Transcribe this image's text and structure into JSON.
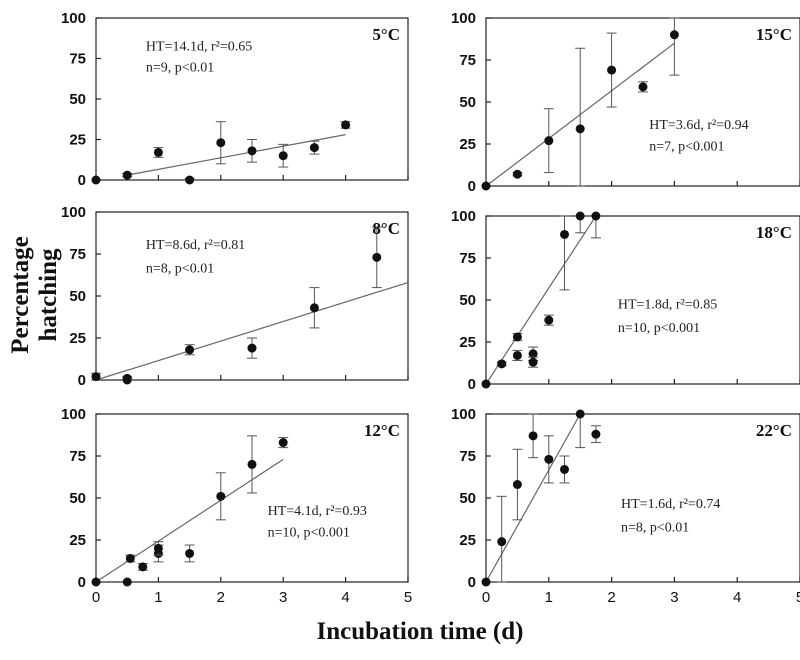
{
  "figure": {
    "y_label": "Percentage hatching",
    "x_label": "Incubation time (d)"
  },
  "chart_data": [
    {
      "type": "scatter",
      "temperature": "5°C",
      "annotation_line1": "HT=14.1d, r²=0.65",
      "annotation_line2": "n=9, p<0.01",
      "xlim": [
        0,
        5
      ],
      "ylim": [
        0,
        100
      ],
      "x_ticks": [
        "0",
        "1",
        "2",
        "3",
        "4",
        "5"
      ],
      "y_ticks": [
        "0",
        "25",
        "50",
        "75",
        "100"
      ],
      "points": [
        [
          0,
          0
        ],
        [
          0.5,
          3
        ],
        [
          1,
          17
        ],
        [
          1.5,
          0
        ],
        [
          2,
          23
        ],
        [
          2.5,
          18
        ],
        [
          3,
          15
        ],
        [
          3.5,
          20
        ],
        [
          4,
          34
        ]
      ],
      "err": [
        0,
        1,
        3,
        1,
        13,
        7,
        7,
        4,
        2
      ],
      "fit": [
        [
          0.5,
          3
        ],
        [
          4,
          28
        ]
      ]
    },
    {
      "type": "scatter",
      "temperature": "15°C",
      "annotation_line1": "HT=3.6d, r²=0.94",
      "annotation_line2": "n=7, p<0.001",
      "xlim": [
        0,
        5
      ],
      "ylim": [
        0,
        100
      ],
      "x_ticks": [
        "0",
        "1",
        "2",
        "3",
        "4",
        "5"
      ],
      "y_ticks": [
        "0",
        "25",
        "50",
        "75",
        "100"
      ],
      "points": [
        [
          0,
          0
        ],
        [
          0.5,
          7
        ],
        [
          1,
          27
        ],
        [
          1.5,
          34
        ],
        [
          2,
          69
        ],
        [
          2.5,
          59
        ],
        [
          3,
          90
        ]
      ],
      "err": [
        0,
        1,
        19,
        48,
        22,
        3,
        24
      ],
      "fit": [
        [
          0,
          0
        ],
        [
          3,
          85
        ]
      ]
    },
    {
      "type": "scatter",
      "temperature": "8°C",
      "annotation_line1": "HT=8.6d, r²=0.81",
      "annotation_line2": "n=8, p<0.01",
      "xlim": [
        0,
        5
      ],
      "ylim": [
        0,
        100
      ],
      "x_ticks": [
        "0",
        "1",
        "2",
        "3",
        "4",
        "5"
      ],
      "y_ticks": [
        "0",
        "25",
        "50",
        "75",
        "100"
      ],
      "points": [
        [
          0,
          2
        ],
        [
          0.5,
          1
        ],
        [
          0.5,
          0
        ],
        [
          1.5,
          18
        ],
        [
          2.5,
          19
        ],
        [
          3.5,
          43
        ],
        [
          4.5,
          73
        ]
      ],
      "err": [
        2,
        1,
        1,
        3,
        6,
        12,
        18
      ],
      "fit": [
        [
          0,
          0
        ],
        [
          5,
          58
        ]
      ]
    },
    {
      "type": "scatter",
      "temperature": "18°C",
      "annotation_line1": "HT=1.8d, r²=0.85",
      "annotation_line2": "n=10, p<0.001",
      "xlim": [
        0,
        5
      ],
      "ylim": [
        0,
        100
      ],
      "x_ticks": [
        "0",
        "1",
        "2",
        "3",
        "4",
        "5"
      ],
      "y_ticks": [
        "0",
        "25",
        "50",
        "75",
        "100"
      ],
      "points": [
        [
          0,
          0
        ],
        [
          0.25,
          12
        ],
        [
          0.5,
          28
        ],
        [
          0.5,
          17
        ],
        [
          0.75,
          18
        ],
        [
          0.75,
          13
        ],
        [
          1,
          38
        ],
        [
          1.25,
          89
        ],
        [
          1.5,
          100
        ],
        [
          1.75,
          100
        ]
      ],
      "err": [
        0,
        1,
        2,
        3,
        4,
        3,
        3,
        33,
        10,
        13
      ],
      "fit": [
        [
          0,
          0
        ],
        [
          1.75,
          100
        ]
      ]
    },
    {
      "type": "scatter",
      "temperature": "12°C",
      "annotation_line1": "HT=4.1d, r²=0.93",
      "annotation_line2": "n=10, p<0.001",
      "xlim": [
        0,
        5
      ],
      "ylim": [
        0,
        100
      ],
      "x_ticks": [
        "0",
        "1",
        "2",
        "3",
        "4",
        "5"
      ],
      "y_ticks": [
        "0",
        "25",
        "50",
        "75",
        "100"
      ],
      "points": [
        [
          0,
          0
        ],
        [
          0.5,
          0
        ],
        [
          0.55,
          14
        ],
        [
          0.75,
          9
        ],
        [
          1,
          17
        ],
        [
          1,
          20
        ],
        [
          1.5,
          17
        ],
        [
          2,
          51
        ],
        [
          2.5,
          70
        ],
        [
          3,
          83
        ]
      ],
      "err": [
        0,
        0,
        2,
        2,
        5,
        4,
        5,
        14,
        17,
        3
      ],
      "fit": [
        [
          0,
          0
        ],
        [
          3,
          73
        ]
      ]
    },
    {
      "type": "scatter",
      "temperature": "22°C",
      "annotation_line1": "HT=1.6d, r²=0.74",
      "annotation_line2": "n=8, p<0.01",
      "xlim": [
        0,
        5
      ],
      "ylim": [
        0,
        100
      ],
      "x_ticks": [
        "0",
        "1",
        "2",
        "3",
        "4",
        "5"
      ],
      "y_ticks": [
        "0",
        "25",
        "50",
        "75",
        "100"
      ],
      "points": [
        [
          0,
          0
        ],
        [
          0.25,
          24
        ],
        [
          0.5,
          58
        ],
        [
          0.75,
          87
        ],
        [
          1,
          73
        ],
        [
          1.25,
          67
        ],
        [
          1.5,
          100
        ],
        [
          1.75,
          88
        ]
      ],
      "err": [
        0,
        27,
        21,
        13,
        14,
        8,
        20,
        5
      ],
      "fit": [
        [
          0,
          0
        ],
        [
          1.5,
          100
        ]
      ]
    }
  ]
}
